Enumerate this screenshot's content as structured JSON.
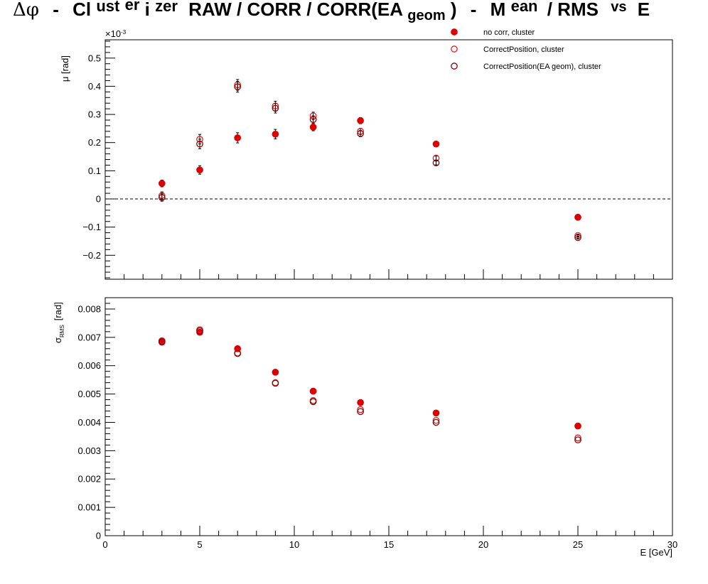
{
  "title": {
    "dphi": "Δφ",
    "sep1": "-",
    "cl": "Cl",
    "ust": "ust",
    "er": "er",
    "i": "i",
    "zer": "zer",
    "main": "RAW / CORR / CORR(EA",
    "sub_geom": "geom",
    "close": ")",
    "sep2": "-",
    "m": "M",
    "ean": "ean",
    "rms": "/ RMS",
    "vs": "vs",
    "e": "E"
  },
  "colors": {
    "series_fill": "#dd0000",
    "open_light": "#dd2222",
    "open_dark": "#8b0000",
    "frame": "#000000"
  },
  "chart_data": [
    {
      "type": "scatter",
      "panel": "top",
      "ylabel": "μ  [rad]",
      "y_multiplier": "×10",
      "y_multiplier_exp": "-3",
      "ylim": [
        -0.285,
        0.565
      ],
      "xlim": [
        0,
        30
      ],
      "yticks": [
        -0.2,
        -0.1,
        0,
        0.1,
        0.2,
        0.3,
        0.4,
        0.5
      ],
      "ytick_labels": [
        "−0.2",
        "−0.1",
        "0",
        "0.1",
        "0.2",
        "0.3",
        "0.4",
        "0.5"
      ],
      "reference_line": 0,
      "series": [
        {
          "name": "no corr, cluster",
          "marker": "filled",
          "x": [
            3,
            5,
            7,
            9,
            11,
            13.5,
            17.5,
            25
          ],
          "y": [
            0.055,
            0.103,
            0.217,
            0.23,
            0.255,
            0.278,
            0.195,
            -0.065
          ],
          "err": [
            0.012,
            0.015,
            0.018,
            0.017,
            0.013,
            0.011,
            0.007,
            0.005
          ]
        },
        {
          "name": "CorrectPosition, cluster",
          "marker": "open",
          "x": [
            3,
            5,
            7,
            9,
            11,
            13.5,
            17.5,
            25
          ],
          "y": [
            0.012,
            0.212,
            0.405,
            0.33,
            0.295,
            0.24,
            0.145,
            -0.13
          ],
          "err": [
            0.013,
            0.017,
            0.019,
            0.017,
            0.013,
            0.011,
            0.007,
            0.005
          ]
        },
        {
          "name": "CorrectPosition(EA geom), cluster",
          "marker": "open",
          "x": [
            3,
            5,
            7,
            9,
            11,
            13.5,
            17.5,
            25
          ],
          "y": [
            0.005,
            0.195,
            0.398,
            0.322,
            0.282,
            0.232,
            0.128,
            -0.137
          ],
          "err": [
            0.013,
            0.017,
            0.019,
            0.017,
            0.013,
            0.011,
            0.007,
            0.005
          ]
        }
      ]
    },
    {
      "type": "scatter",
      "panel": "bottom",
      "ylabel": "σ",
      "ylabel_sub": "RMS",
      "ylabel_unit": "[rad]",
      "xlabel": "E  [GeV]",
      "ylim": [
        0,
        0.0084
      ],
      "xlim": [
        0,
        30
      ],
      "xticks": [
        0,
        5,
        10,
        15,
        20,
        25,
        30
      ],
      "xtick_labels": [
        "0",
        "5",
        "10",
        "15",
        "20",
        "25",
        "30"
      ],
      "yticks": [
        0,
        0.001,
        0.002,
        0.003,
        0.004,
        0.005,
        0.006,
        0.007,
        0.008
      ],
      "ytick_labels": [
        "0",
        "0.001",
        "0.002",
        "0.003",
        "0.004",
        "0.005",
        "0.006",
        "0.007",
        "0.008"
      ],
      "series": [
        {
          "name": "no corr, cluster",
          "marker": "filled",
          "x": [
            3,
            5,
            7,
            9,
            11,
            13.5,
            17.5,
            25
          ],
          "y": [
            0.00683,
            0.00718,
            0.0066,
            0.00577,
            0.0051,
            0.0047,
            0.00433,
            0.00387
          ]
        },
        {
          "name": "CorrectPosition, cluster",
          "marker": "open",
          "x": [
            3,
            5,
            7,
            9,
            11,
            13.5,
            17.5,
            25
          ],
          "y": [
            0.00688,
            0.00727,
            0.00645,
            0.0054,
            0.00477,
            0.00445,
            0.00407,
            0.00345
          ]
        },
        {
          "name": "CorrectPosition(EA geom), cluster",
          "marker": "open",
          "x": [
            3,
            5,
            7,
            9,
            11,
            13.5,
            17.5,
            25
          ],
          "y": [
            0.00685,
            0.00723,
            0.00643,
            0.00538,
            0.00473,
            0.00438,
            0.004,
            0.00338
          ]
        }
      ]
    }
  ]
}
